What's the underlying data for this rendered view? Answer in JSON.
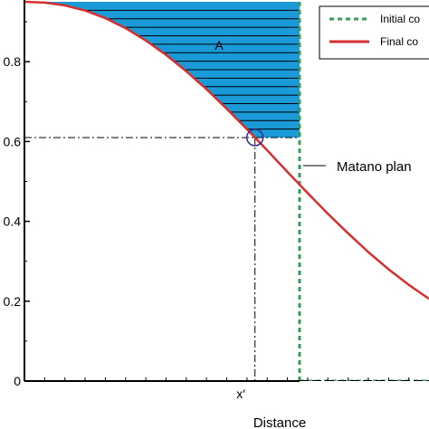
{
  "chart_data": {
    "type": "line",
    "title": "",
    "xlabel": "Distance",
    "ylabel": "",
    "ylim": [
      0,
      0.95
    ],
    "yticks": [
      {
        "value": 0,
        "label": "0"
      },
      {
        "value": 0.2,
        "label": "0.2"
      },
      {
        "value": 0.4,
        "label": "0.4"
      },
      {
        "value": 0.6,
        "label": "0.6"
      },
      {
        "value": 0.8,
        "label": "0.8"
      }
    ],
    "grid": false,
    "legend_position": "top-right",
    "legend": [
      {
        "label": "Initial co",
        "color": "#3a9a5b",
        "style": "dashed"
      },
      {
        "label": "Final co",
        "color": "#d62f2f",
        "style": "solid"
      }
    ],
    "annotations": {
      "area_label": "A",
      "x_marker_label": "x′",
      "plane_label": "Matano plan",
      "marker_value": 0.61
    },
    "series": [
      {
        "name": "Final co",
        "x": [
          0,
          0.05,
          0.1,
          0.15,
          0.2,
          0.25,
          0.3,
          0.35,
          0.4,
          0.45,
          0.5,
          0.55,
          0.6,
          0.65,
          0.7,
          0.75,
          0.8,
          0.85,
          0.9,
          0.95,
          1.0
        ],
        "y": [
          0.95,
          0.948,
          0.941,
          0.928,
          0.909,
          0.884,
          0.853,
          0.817,
          0.776,
          0.731,
          0.682,
          0.631,
          0.578,
          0.524,
          0.471,
          0.419,
          0.37,
          0.323,
          0.28,
          0.241,
          0.206
        ]
      },
      {
        "name": "Initial co",
        "segments": [
          {
            "x": [
              0.68,
              0.68
            ],
            "y": [
              0.95,
              0
            ]
          },
          {
            "x": [
              0.68,
              1.0
            ],
            "y": [
              0,
              0
            ]
          }
        ]
      }
    ],
    "colors": {
      "axis": "#000000",
      "fill": "#1a9bd7",
      "marker": "#2d2d8a"
    }
  }
}
